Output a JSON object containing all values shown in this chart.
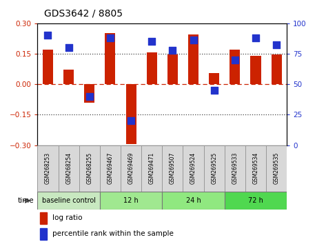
{
  "title": "GDS3642 / 8805",
  "samples": [
    "GSM268253",
    "GSM268254",
    "GSM268255",
    "GSM269467",
    "GSM269469",
    "GSM269471",
    "GSM269507",
    "GSM269524",
    "GSM269525",
    "GSM269533",
    "GSM269534",
    "GSM269535"
  ],
  "log_ratio": [
    0.17,
    0.07,
    -0.09,
    0.25,
    -0.295,
    0.155,
    0.145,
    0.245,
    0.055,
    0.17,
    0.14,
    0.145
  ],
  "percentile": [
    90,
    80,
    40,
    88,
    20,
    85,
    78,
    86,
    45,
    70,
    88,
    82
  ],
  "ylim_left": [
    -0.3,
    0.3
  ],
  "ylim_right": [
    0,
    100
  ],
  "yticks_left": [
    -0.3,
    -0.15,
    0,
    0.15,
    0.3
  ],
  "yticks_right": [
    0,
    25,
    50,
    75,
    100
  ],
  "hlines_dotted": [
    0.15,
    -0.15
  ],
  "hline_dashed": 0,
  "bar_color": "#cc2200",
  "dot_color": "#2233cc",
  "zero_line_color": "#cc2200",
  "bg_color": "#ffffff",
  "tick_color_left": "#cc2200",
  "tick_color_right": "#2233cc",
  "groups": [
    {
      "label": "baseline control",
      "start": 0,
      "end": 3,
      "color": "#c8e8c0"
    },
    {
      "label": "12 h",
      "start": 3,
      "end": 6,
      "color": "#a0e890"
    },
    {
      "label": "24 h",
      "start": 6,
      "end": 9,
      "color": "#90e880"
    },
    {
      "label": "72 h",
      "start": 9,
      "end": 12,
      "color": "#50d850"
    }
  ],
  "bar_width": 0.5,
  "dot_size": 50,
  "cell_color": "#d8d8d8"
}
